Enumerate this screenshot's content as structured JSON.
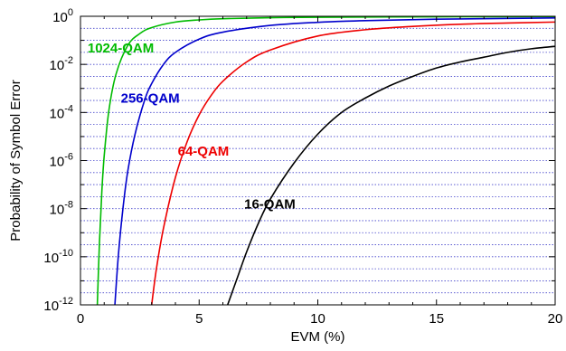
{
  "chart_data": {
    "type": "line",
    "xlabel": "EVM (%)",
    "ylabel": "Probability of Symbol Error",
    "xlim": [
      0,
      20
    ],
    "ylim_log10": [
      -12,
      0
    ],
    "y_scale": "log",
    "grid": "horizontal dotted lines at each decade and half-decade",
    "x_ticks": [
      0,
      5,
      10,
      15,
      20
    ],
    "x_tick_labels": [
      "0",
      "5",
      "10",
      "15",
      "20"
    ],
    "y_ticks": [
      {
        "base": "10",
        "exp": "-12",
        "value": -12
      },
      {
        "base": "10",
        "exp": "-10",
        "value": -10
      },
      {
        "base": "10",
        "exp": "-8",
        "value": -8
      },
      {
        "base": "10",
        "exp": "-6",
        "value": -6
      },
      {
        "base": "10",
        "exp": "-4",
        "value": -4
      },
      {
        "base": "10",
        "exp": "-2",
        "value": -2
      },
      {
        "base": "10",
        "exp": "0",
        "value": 0
      }
    ],
    "series": [
      {
        "name": "1024-QAM",
        "color": "#00bb00",
        "label_anchor": {
          "x": 0.3,
          "y_log10": -1.5
        },
        "x": [
          0.71,
          0.8,
          0.9,
          1.0,
          1.2,
          1.5,
          2.0,
          2.5,
          3.0,
          4.0,
          5.0,
          6.0,
          8.0,
          10.0,
          15.0,
          20.0
        ],
        "y_log10": [
          -12.0,
          -9.4,
          -7.3,
          -5.8,
          -3.9,
          -2.4,
          -1.2,
          -0.72,
          -0.47,
          -0.24,
          -0.15,
          -0.1,
          -0.06,
          -0.04,
          -0.02,
          -0.01
        ]
      },
      {
        "name": "256-QAM",
        "color": "#0000cc",
        "label_anchor": {
          "x": 1.7,
          "y_log10": -3.6
        },
        "x": [
          1.45,
          1.6,
          1.8,
          2.0,
          2.3,
          2.7,
          3.0,
          3.5,
          4.0,
          5.0,
          6.0,
          8.0,
          10.0,
          12.0,
          15.0,
          20.0
        ],
        "y_log10": [
          -12.0,
          -9.9,
          -7.9,
          -6.4,
          -4.9,
          -3.5,
          -2.8,
          -2.0,
          -1.5,
          -0.95,
          -0.66,
          -0.38,
          -0.25,
          -0.18,
          -0.12,
          -0.07
        ]
      },
      {
        "name": "64-QAM",
        "color": "#ee0000",
        "label_anchor": {
          "x": 4.1,
          "y_log10": -5.8
        },
        "x": [
          3.0,
          3.2,
          3.5,
          4.0,
          4.5,
          5.0,
          5.5,
          6.0,
          7.0,
          8.0,
          10.0,
          12.0,
          14.0,
          16.0,
          18.0,
          20.0
        ],
        "y_log10": [
          -12.0,
          -10.5,
          -8.8,
          -6.7,
          -5.2,
          -4.1,
          -3.3,
          -2.7,
          -1.9,
          -1.4,
          -0.82,
          -0.56,
          -0.42,
          -0.33,
          -0.28,
          -0.24
        ]
      },
      {
        "name": "16-QAM",
        "color": "#000000",
        "label_anchor": {
          "x": 6.9,
          "y_log10": -8.0
        },
        "x": [
          6.2,
          6.6,
          7.0,
          7.5,
          8.0,
          9.0,
          10.0,
          11.0,
          12.0,
          13.0,
          14.0,
          15.0,
          16.0,
          17.0,
          18.0,
          19.0,
          20.0
        ],
        "y_log10": [
          -12.0,
          -10.9,
          -9.8,
          -8.6,
          -7.6,
          -6.1,
          -4.9,
          -4.0,
          -3.4,
          -2.9,
          -2.5,
          -2.15,
          -1.9,
          -1.7,
          -1.5,
          -1.35,
          -1.25
        ]
      }
    ]
  }
}
